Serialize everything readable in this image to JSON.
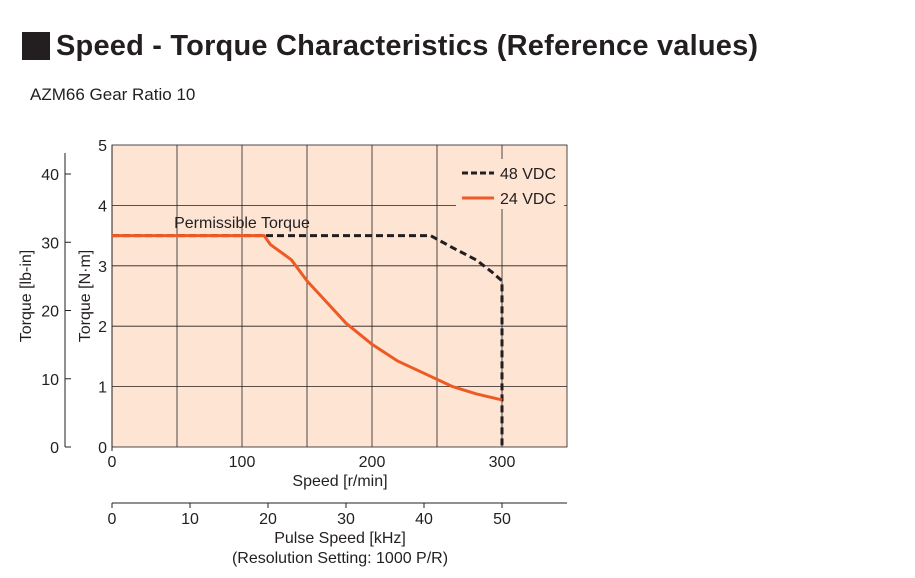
{
  "header": {
    "title": "Speed - Torque Characteristics (Reference values)",
    "subtitle": "AZM66  Gear Ratio 10"
  },
  "chart_data": {
    "type": "line",
    "x": {
      "label": "Speed [r/min]",
      "min": 0,
      "max": 350,
      "ticks": [
        0,
        100,
        200,
        300
      ]
    },
    "y_left": {
      "label": "Torque [lb-in]",
      "min": 0,
      "max": 44.25,
      "ticks": [
        0,
        10,
        20,
        30,
        40
      ]
    },
    "y_right": {
      "label": "Torque [N·m]",
      "min": 0,
      "max": 5,
      "ticks": [
        0,
        1,
        2,
        3,
        4,
        5
      ]
    },
    "x2": {
      "label": "Pulse Speed [kHz]",
      "sublabel": "(Resolution Setting: 1000 P/R)",
      "ticks": [
        0,
        10,
        20,
        30,
        40,
        50
      ]
    },
    "grid": true,
    "colors": {
      "plot_background": "#fde4d3",
      "grid": "#231f20",
      "series_48": "#231f20",
      "series_24": "#ee5a24"
    },
    "legend": {
      "position": "top-right"
    },
    "annotation": "Permissible Torque",
    "series": [
      {
        "name": "48 VDC",
        "style": "dashed",
        "points": [
          [
            0,
            3.5
          ],
          [
            245,
            3.5
          ],
          [
            262,
            3.3
          ],
          [
            280,
            3.1
          ],
          [
            292,
            2.9
          ],
          [
            300,
            2.75
          ],
          [
            300,
            0
          ]
        ]
      },
      {
        "name": "24 VDC",
        "style": "solid",
        "points": [
          [
            0,
            3.5
          ],
          [
            117,
            3.5
          ],
          [
            122,
            3.35
          ],
          [
            138,
            3.1
          ],
          [
            150,
            2.75
          ],
          [
            165,
            2.4
          ],
          [
            180,
            2.05
          ],
          [
            200,
            1.7
          ],
          [
            220,
            1.42
          ],
          [
            245,
            1.17
          ],
          [
            262,
            1.0
          ],
          [
            280,
            0.88
          ],
          [
            300,
            0.78
          ]
        ]
      }
    ]
  }
}
